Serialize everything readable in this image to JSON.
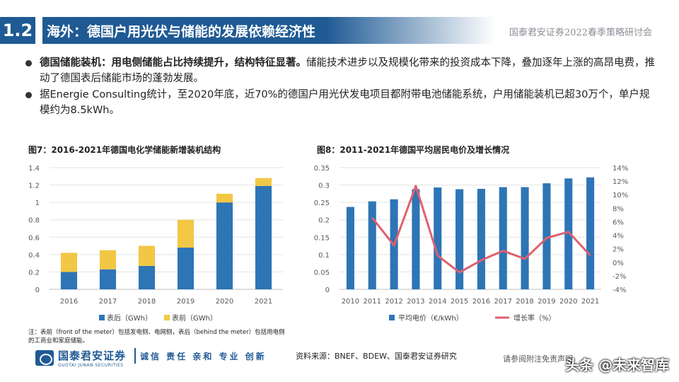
{
  "header": {
    "section_number": "1.2",
    "section_title": "海外：德国户用光伏与储能的发展依赖经济性",
    "right_text": "国泰君安证券2022春季策略研讨会"
  },
  "bullets": [
    {
      "bold": "德国储能装机：用电侧储能占比持续提升，结构特征显著。",
      "text": "储能技术进步以及规模化带来的投资成本下降，叠加逐年上涨的高昂电费，推动了德国表后储能市场的蓬勃发展。"
    },
    {
      "bold": "",
      "text": "据Energie Consulting统计，至2020年底，近70%的德国户用光伏发电项目都附带电池储能系统，户用储能装机已超30万个，单户规模约为8.5kWh。"
    }
  ],
  "chart_data": [
    {
      "type": "bar",
      "title": "图7：2016-2021年德国电化学储能新增装机结构",
      "categories": [
        "2016",
        "2017",
        "2018",
        "2019",
        "2020",
        "2021"
      ],
      "series": [
        {
          "name": "表后（GWh）",
          "color": "#2e75b6",
          "values": [
            0.2,
            0.23,
            0.27,
            0.48,
            1.0,
            1.19
          ]
        },
        {
          "name": "表前（GWh）",
          "color": "#f2c744",
          "values": [
            0.22,
            0.22,
            0.23,
            0.32,
            0.1,
            0.09
          ]
        }
      ],
      "stacked": true,
      "ylim": [
        0,
        1.4
      ],
      "yticks": [
        "0",
        "0.2",
        "0.4",
        "0.6",
        "0.8",
        "1",
        "1.2",
        "1.4"
      ],
      "grid": true,
      "legend": "bottom"
    },
    {
      "type": "bar",
      "title": "图8：2011-2021年德国平均居民电价及增长情况",
      "categories": [
        "2010",
        "2011",
        "2012",
        "2013",
        "2014",
        "2015",
        "2016",
        "2017",
        "2018",
        "2019",
        "2020",
        "2021"
      ],
      "series": [
        {
          "name": "平均电价（€/kWh）",
          "type": "bar",
          "axis": "left",
          "color": "#2e75b6",
          "values": [
            0.237,
            0.253,
            0.259,
            0.288,
            0.293,
            0.288,
            0.289,
            0.294,
            0.294,
            0.305,
            0.319,
            0.322
          ]
        },
        {
          "name": "增长率（%）",
          "type": "line",
          "axis": "right",
          "color": "#e0606e",
          "x": [
            "2011",
            "2012",
            "2013",
            "2014",
            "2015",
            "2016",
            "2017",
            "2018",
            "2019",
            "2020",
            "2021"
          ],
          "values": [
            6.6,
            2.5,
            11.3,
            1.0,
            -1.5,
            0.3,
            1.7,
            0.5,
            3.6,
            4.5,
            1.0
          ]
        }
      ],
      "ylim_left": [
        0,
        0.35
      ],
      "yticks_left": [
        "0",
        "0.05",
        "0.1",
        "0.15",
        "0.2",
        "0.25",
        "0.3",
        "0.35"
      ],
      "ylim_right": [
        -4,
        14
      ],
      "yticks_right": [
        "-4%",
        "-2%",
        "0%",
        "2%",
        "4%",
        "6%",
        "8%",
        "10%",
        "12%",
        "14%"
      ],
      "grid": true,
      "legend": "bottom"
    }
  ],
  "note": "注：表前（front of the meter）包括发电侧、电网侧，表后（behind the meter）包括用电侧的工商业和家庭储能。",
  "source": "资料来源：BNEF、BDEW、国泰君安证券研究",
  "disclaimer": "请参阅附注免责声明",
  "footer": {
    "logo_cn": "国泰君安证券",
    "logo_en": "GUOTAI JUNAN SECURITIES",
    "slogan": "诚信 责任 亲和 专业 创新"
  },
  "watermark": "头条 @未来智库"
}
